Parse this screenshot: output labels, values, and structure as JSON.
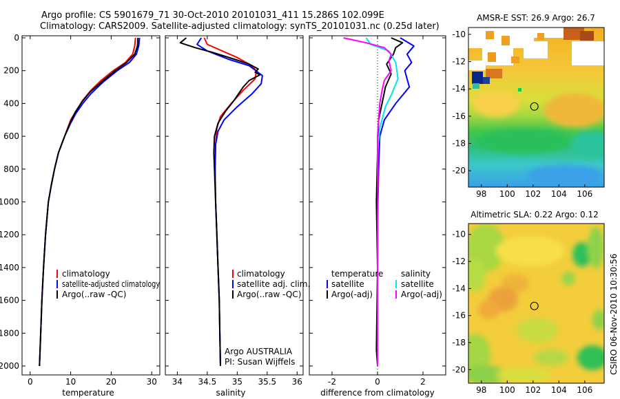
{
  "header": {
    "line1": "Argo profile: CS 5901679_71 30-Oct-2010 20101031_411 15.286S 102.099E",
    "line2": "Climatology: CARS2009. Satellite-adjusted climatology: synTS_20101031.nc (0.25d later)"
  },
  "side_label": "CSIRO 06-Nov-2010 10:30:56",
  "colors": {
    "climatology": "#ff0000",
    "satellite": "#0000ff",
    "argo": "#000000",
    "satellite_salinity": "#00e5e5",
    "argo_salinity": "#ff00ff"
  },
  "chart_data": [
    {
      "type": "line",
      "id": "temperature",
      "xlabel": "temperature",
      "xlim": [
        -2,
        32
      ],
      "ylim": [
        2050,
        0
      ],
      "xticks": [
        0,
        10,
        20,
        30
      ],
      "yticks": [
        0,
        200,
        400,
        600,
        800,
        1000,
        1200,
        1400,
        1600,
        1800,
        2000
      ],
      "legend": {
        "position": "lower-right",
        "entries": [
          "climatology",
          "satellite-adjusted climatology",
          "Argo(..raw -QC)"
        ]
      },
      "series": [
        {
          "name": "climatology",
          "color": "#ff0000",
          "points": [
            [
              26,
              0
            ],
            [
              25.8,
              50
            ],
            [
              25.3,
              100
            ],
            [
              23.5,
              150
            ],
            [
              20.5,
              200
            ],
            [
              17.5,
              260
            ],
            [
              15,
              320
            ],
            [
              13,
              380
            ],
            [
              11.5,
              440
            ],
            [
              10,
              500
            ],
            [
              8.5,
              600
            ],
            [
              7,
              700
            ],
            [
              6,
              800
            ],
            [
              5.2,
              900
            ],
            [
              4.5,
              1000
            ],
            [
              3.8,
              1200
            ],
            [
              3.3,
              1400
            ],
            [
              2.9,
              1600
            ],
            [
              2.6,
              1800
            ],
            [
              2.3,
              2000
            ]
          ]
        },
        {
          "name": "satellite-adjusted climatology",
          "color": "#0000ff",
          "points": [
            [
              27,
              0
            ],
            [
              26.8,
              50
            ],
            [
              26.2,
              100
            ],
            [
              24.5,
              150
            ],
            [
              21.5,
              200
            ],
            [
              18,
              270
            ],
            [
              15,
              340
            ],
            [
              13,
              400
            ],
            [
              11.3,
              460
            ],
            [
              10,
              520
            ],
            [
              8.5,
              600
            ],
            [
              7,
              700
            ],
            [
              6,
              800
            ],
            [
              5.2,
              900
            ],
            [
              4.5,
              1000
            ],
            [
              3.8,
              1200
            ],
            [
              3.3,
              1400
            ],
            [
              2.9,
              1600
            ],
            [
              2.6,
              1800
            ],
            [
              2.3,
              2000
            ]
          ]
        },
        {
          "name": "Argo(..raw -QC)",
          "color": "#000000",
          "points": [
            [
              26.6,
              0
            ],
            [
              26.5,
              50
            ],
            [
              25.8,
              100
            ],
            [
              23.8,
              150
            ],
            [
              21,
              200
            ],
            [
              17.8,
              265
            ],
            [
              14.8,
              330
            ],
            [
              12.8,
              390
            ],
            [
              11.2,
              450
            ],
            [
              10,
              510
            ],
            [
              8.5,
              600
            ],
            [
              7,
              700
            ],
            [
              6,
              800
            ],
            [
              5.2,
              900
            ],
            [
              4.5,
              1000
            ],
            [
              3.8,
              1200
            ],
            [
              3.3,
              1400
            ],
            [
              2.9,
              1600
            ],
            [
              2.6,
              1800
            ],
            [
              2.3,
              2000
            ]
          ]
        }
      ]
    },
    {
      "type": "line",
      "id": "salinity",
      "xlabel": "salinity",
      "xlim": [
        33.8,
        36.1
      ],
      "ylim": [
        2050,
        0
      ],
      "xticks": [
        34,
        34.5,
        35,
        35.5,
        36
      ],
      "legend": {
        "position": "lower-right",
        "entries": [
          "climatology",
          "satellite adj. clim.",
          "Argo(..raw -QC)"
        ]
      },
      "annotation": [
        "Argo AUSTRALIA",
        "PI: Susan Wijffels"
      ],
      "series": [
        {
          "name": "climatology",
          "color": "#ff0000",
          "points": [
            [
              34.45,
              0
            ],
            [
              34.5,
              40
            ],
            [
              34.75,
              80
            ],
            [
              35,
              120
            ],
            [
              35.2,
              160
            ],
            [
              35.32,
              200
            ],
            [
              35.3,
              250
            ],
            [
              35.1,
              320
            ],
            [
              34.9,
              400
            ],
            [
              34.72,
              480
            ],
            [
              34.66,
              550
            ],
            [
              34.64,
              650
            ],
            [
              34.63,
              800
            ],
            [
              34.64,
              1000
            ],
            [
              34.66,
              1200
            ],
            [
              34.68,
              1400
            ],
            [
              34.7,
              1600
            ],
            [
              34.71,
              1800
            ],
            [
              34.72,
              2000
            ]
          ]
        },
        {
          "name": "satellite adj. clim.",
          "color": "#0000ff",
          "points": [
            [
              34.4,
              0
            ],
            [
              34.33,
              40
            ],
            [
              34.5,
              80
            ],
            [
              34.85,
              130
            ],
            [
              35.2,
              170
            ],
            [
              35.42,
              230
            ],
            [
              35.4,
              280
            ],
            [
              35.25,
              340
            ],
            [
              35,
              420
            ],
            [
              34.78,
              500
            ],
            [
              34.68,
              570
            ],
            [
              34.64,
              650
            ],
            [
              34.63,
              800
            ],
            [
              34.64,
              1000
            ],
            [
              34.66,
              1200
            ],
            [
              34.68,
              1400
            ],
            [
              34.7,
              1600
            ],
            [
              34.71,
              1800
            ],
            [
              34.72,
              2000
            ]
          ]
        },
        {
          "name": "Argo(..raw -QC)",
          "color": "#000000",
          "points": [
            [
              34.15,
              0
            ],
            [
              34.05,
              30
            ],
            [
              34.3,
              60
            ],
            [
              34.6,
              90
            ],
            [
              34.95,
              130
            ],
            [
              35.2,
              160
            ],
            [
              35.35,
              190
            ],
            [
              35.3,
              210
            ],
            [
              35.38,
              225
            ],
            [
              35.2,
              260
            ],
            [
              35.1,
              300
            ],
            [
              34.95,
              380
            ],
            [
              34.8,
              450
            ],
            [
              34.68,
              520
            ],
            [
              34.62,
              600
            ],
            [
              34.61,
              700
            ],
            [
              34.62,
              800
            ],
            [
              34.64,
              1000
            ],
            [
              34.66,
              1200
            ],
            [
              34.68,
              1400
            ],
            [
              34.7,
              1600
            ],
            [
              34.71,
              1800
            ],
            [
              34.72,
              2000
            ]
          ]
        }
      ]
    },
    {
      "type": "line",
      "id": "difference",
      "xlabel": "difference from climatology",
      "xlim": [
        -3,
        3
      ],
      "ylim": [
        2050,
        0
      ],
      "xticks": [
        -2,
        0,
        2
      ],
      "legend_left": {
        "title": "temperature",
        "entries": [
          "satellite",
          "Argo(-adj)"
        ]
      },
      "legend_right": {
        "title": "salinity",
        "entries": [
          "satellite",
          "Argo(-adj)"
        ]
      },
      "series": [
        {
          "name": "temperature satellite",
          "color": "#0000ff",
          "points": [
            [
              1,
              0
            ],
            [
              1.6,
              50
            ],
            [
              1.3,
              100
            ],
            [
              1.5,
              150
            ],
            [
              1.2,
              200
            ],
            [
              1.4,
              300
            ],
            [
              0.8,
              400
            ],
            [
              0.3,
              500
            ],
            [
              0.1,
              600
            ],
            [
              0.05,
              800
            ],
            [
              0.02,
              1000
            ],
            [
              0,
              1400
            ],
            [
              0,
              2000
            ]
          ]
        },
        {
          "name": "temperature Argo(-adj)",
          "color": "#000000",
          "points": [
            [
              0.6,
              0
            ],
            [
              1.1,
              30
            ],
            [
              0.8,
              60
            ],
            [
              0.7,
              100
            ],
            [
              0.4,
              160
            ],
            [
              0.6,
              220
            ],
            [
              0.35,
              300
            ],
            [
              0.2,
              400
            ],
            [
              0.05,
              500
            ],
            [
              0,
              700
            ],
            [
              -0.05,
              1000
            ],
            [
              0,
              1400
            ],
            [
              -0.05,
              1900
            ],
            [
              0,
              2000
            ]
          ]
        },
        {
          "name": "salinity satellite",
          "color": "#00e5e5",
          "points": [
            [
              -0.5,
              0
            ],
            [
              -0.3,
              40
            ],
            [
              0.5,
              80
            ],
            [
              0.8,
              150
            ],
            [
              0.9,
              250
            ],
            [
              0.6,
              350
            ],
            [
              0.35,
              420
            ],
            [
              0.1,
              550
            ],
            [
              0,
              700
            ],
            [
              0.02,
              1000
            ],
            [
              0,
              1500
            ],
            [
              0,
              2000
            ]
          ]
        },
        {
          "name": "salinity Argo(-adj)",
          "color": "#ff00ff",
          "points": [
            [
              -1.5,
              0
            ],
            [
              -0.5,
              30
            ],
            [
              0.3,
              60
            ],
            [
              0.6,
              100
            ],
            [
              0.5,
              140
            ],
            [
              0.6,
              200
            ],
            [
              0.3,
              260
            ],
            [
              0.2,
              320
            ],
            [
              0.1,
              400
            ],
            [
              0.05,
              500
            ],
            [
              0,
              600
            ],
            [
              0.02,
              900
            ],
            [
              0,
              1100
            ],
            [
              0,
              1400
            ],
            [
              0,
              2000
            ]
          ]
        }
      ]
    },
    {
      "type": "heatmap",
      "id": "sst_map",
      "title": "AMSR-E SST: 26.9 Argo: 26.7",
      "xlim": [
        97,
        107.5
      ],
      "ylim": [
        -21.2,
        -9.5
      ],
      "xticks": [
        98,
        100,
        102,
        104,
        106
      ],
      "yticks": [
        -10,
        -12,
        -14,
        -16,
        -18,
        -20
      ],
      "argo_position": [
        102.1,
        -15.29
      ]
    },
    {
      "type": "heatmap",
      "id": "sla_map",
      "title": "Altimetric SLA: 0.22 Argo: 0.12",
      "xlim": [
        97,
        107.5
      ],
      "ylim": [
        -21,
        -9.2
      ],
      "xticks": [
        98,
        100,
        102,
        104,
        106
      ],
      "yticks": [
        -10,
        -12,
        -14,
        -16,
        -18,
        -20
      ],
      "argo_position": [
        102.1,
        -15.29
      ]
    }
  ]
}
